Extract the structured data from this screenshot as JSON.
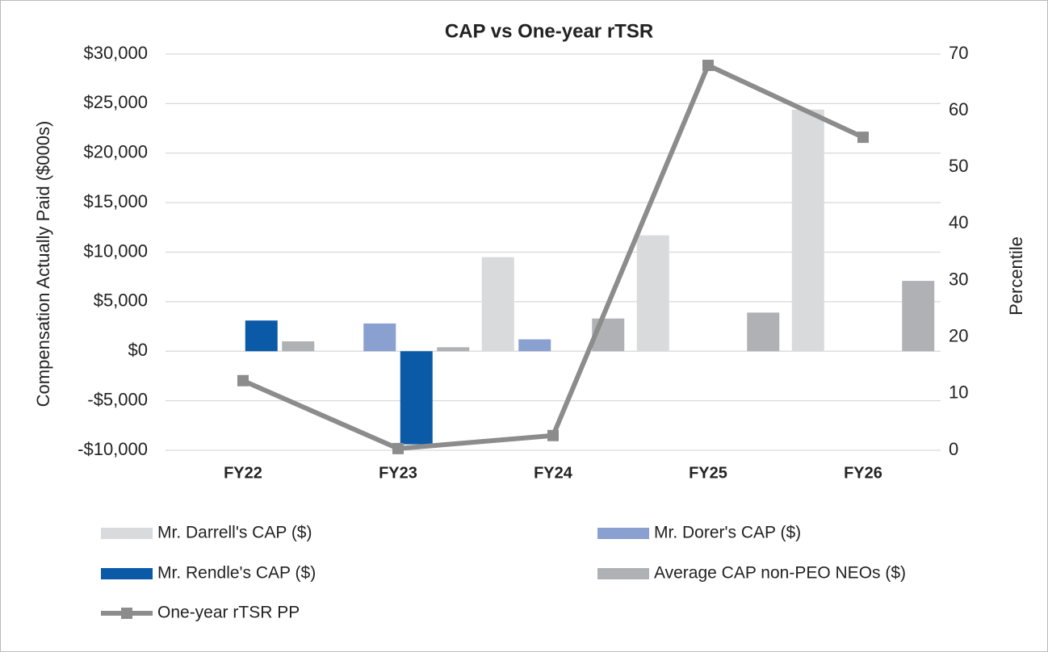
{
  "chart_data": {
    "type": "bar",
    "title": "CAP vs One-year rTSR",
    "y_label": "Compensation Actually Paid ($000s)",
    "y2_label": "Percentile",
    "categories": [
      "FY22",
      "FY23",
      "FY24",
      "FY25",
      "FY26"
    ],
    "series": [
      {
        "name": "Mr. Darrell's CAP ($)",
        "color": "#d9dadc",
        "values": [
          null,
          null,
          9500,
          11700,
          24400
        ]
      },
      {
        "name": "Mr. Dorer's CAP ($)",
        "color": "#8aa0d0",
        "values": [
          null,
          2800,
          1200,
          null,
          null
        ]
      },
      {
        "name": "Mr. Rendle's CAP ($)",
        "color": "#0a5aa8",
        "values": [
          3100,
          -9400,
          null,
          null,
          null
        ]
      },
      {
        "name": "Average CAP non-PEO NEOs ($)",
        "color": "#b0b1b4",
        "values": [
          1000,
          400,
          3300,
          3900,
          7100
        ]
      },
      {
        "name": "One-year rTSR PP",
        "color": "#8c8c8c",
        "type": "line",
        "axis": "y2",
        "values": [
          12.3,
          0.3,
          2.6,
          68,
          55.3
        ]
      }
    ],
    "ylim": [
      -10000,
      30000
    ],
    "yticks": [
      {
        "value": -10000,
        "label": "-$10,000"
      },
      {
        "value": -5000,
        "label": "-$5,000"
      },
      {
        "value": 0,
        "label": "$0"
      },
      {
        "value": 5000,
        "label": "$5,000"
      },
      {
        "value": 10000,
        "label": "$10,000"
      },
      {
        "value": 15000,
        "label": "$15,000"
      },
      {
        "value": 20000,
        "label": "$20,000"
      },
      {
        "value": 25000,
        "label": "$25,000"
      },
      {
        "value": 30000,
        "label": "$30,000"
      }
    ],
    "y2lim": [
      0,
      70
    ],
    "y2ticks": [
      0,
      10,
      20,
      30,
      40,
      50,
      60,
      70
    ],
    "grid": true,
    "legend": "bottom"
  }
}
